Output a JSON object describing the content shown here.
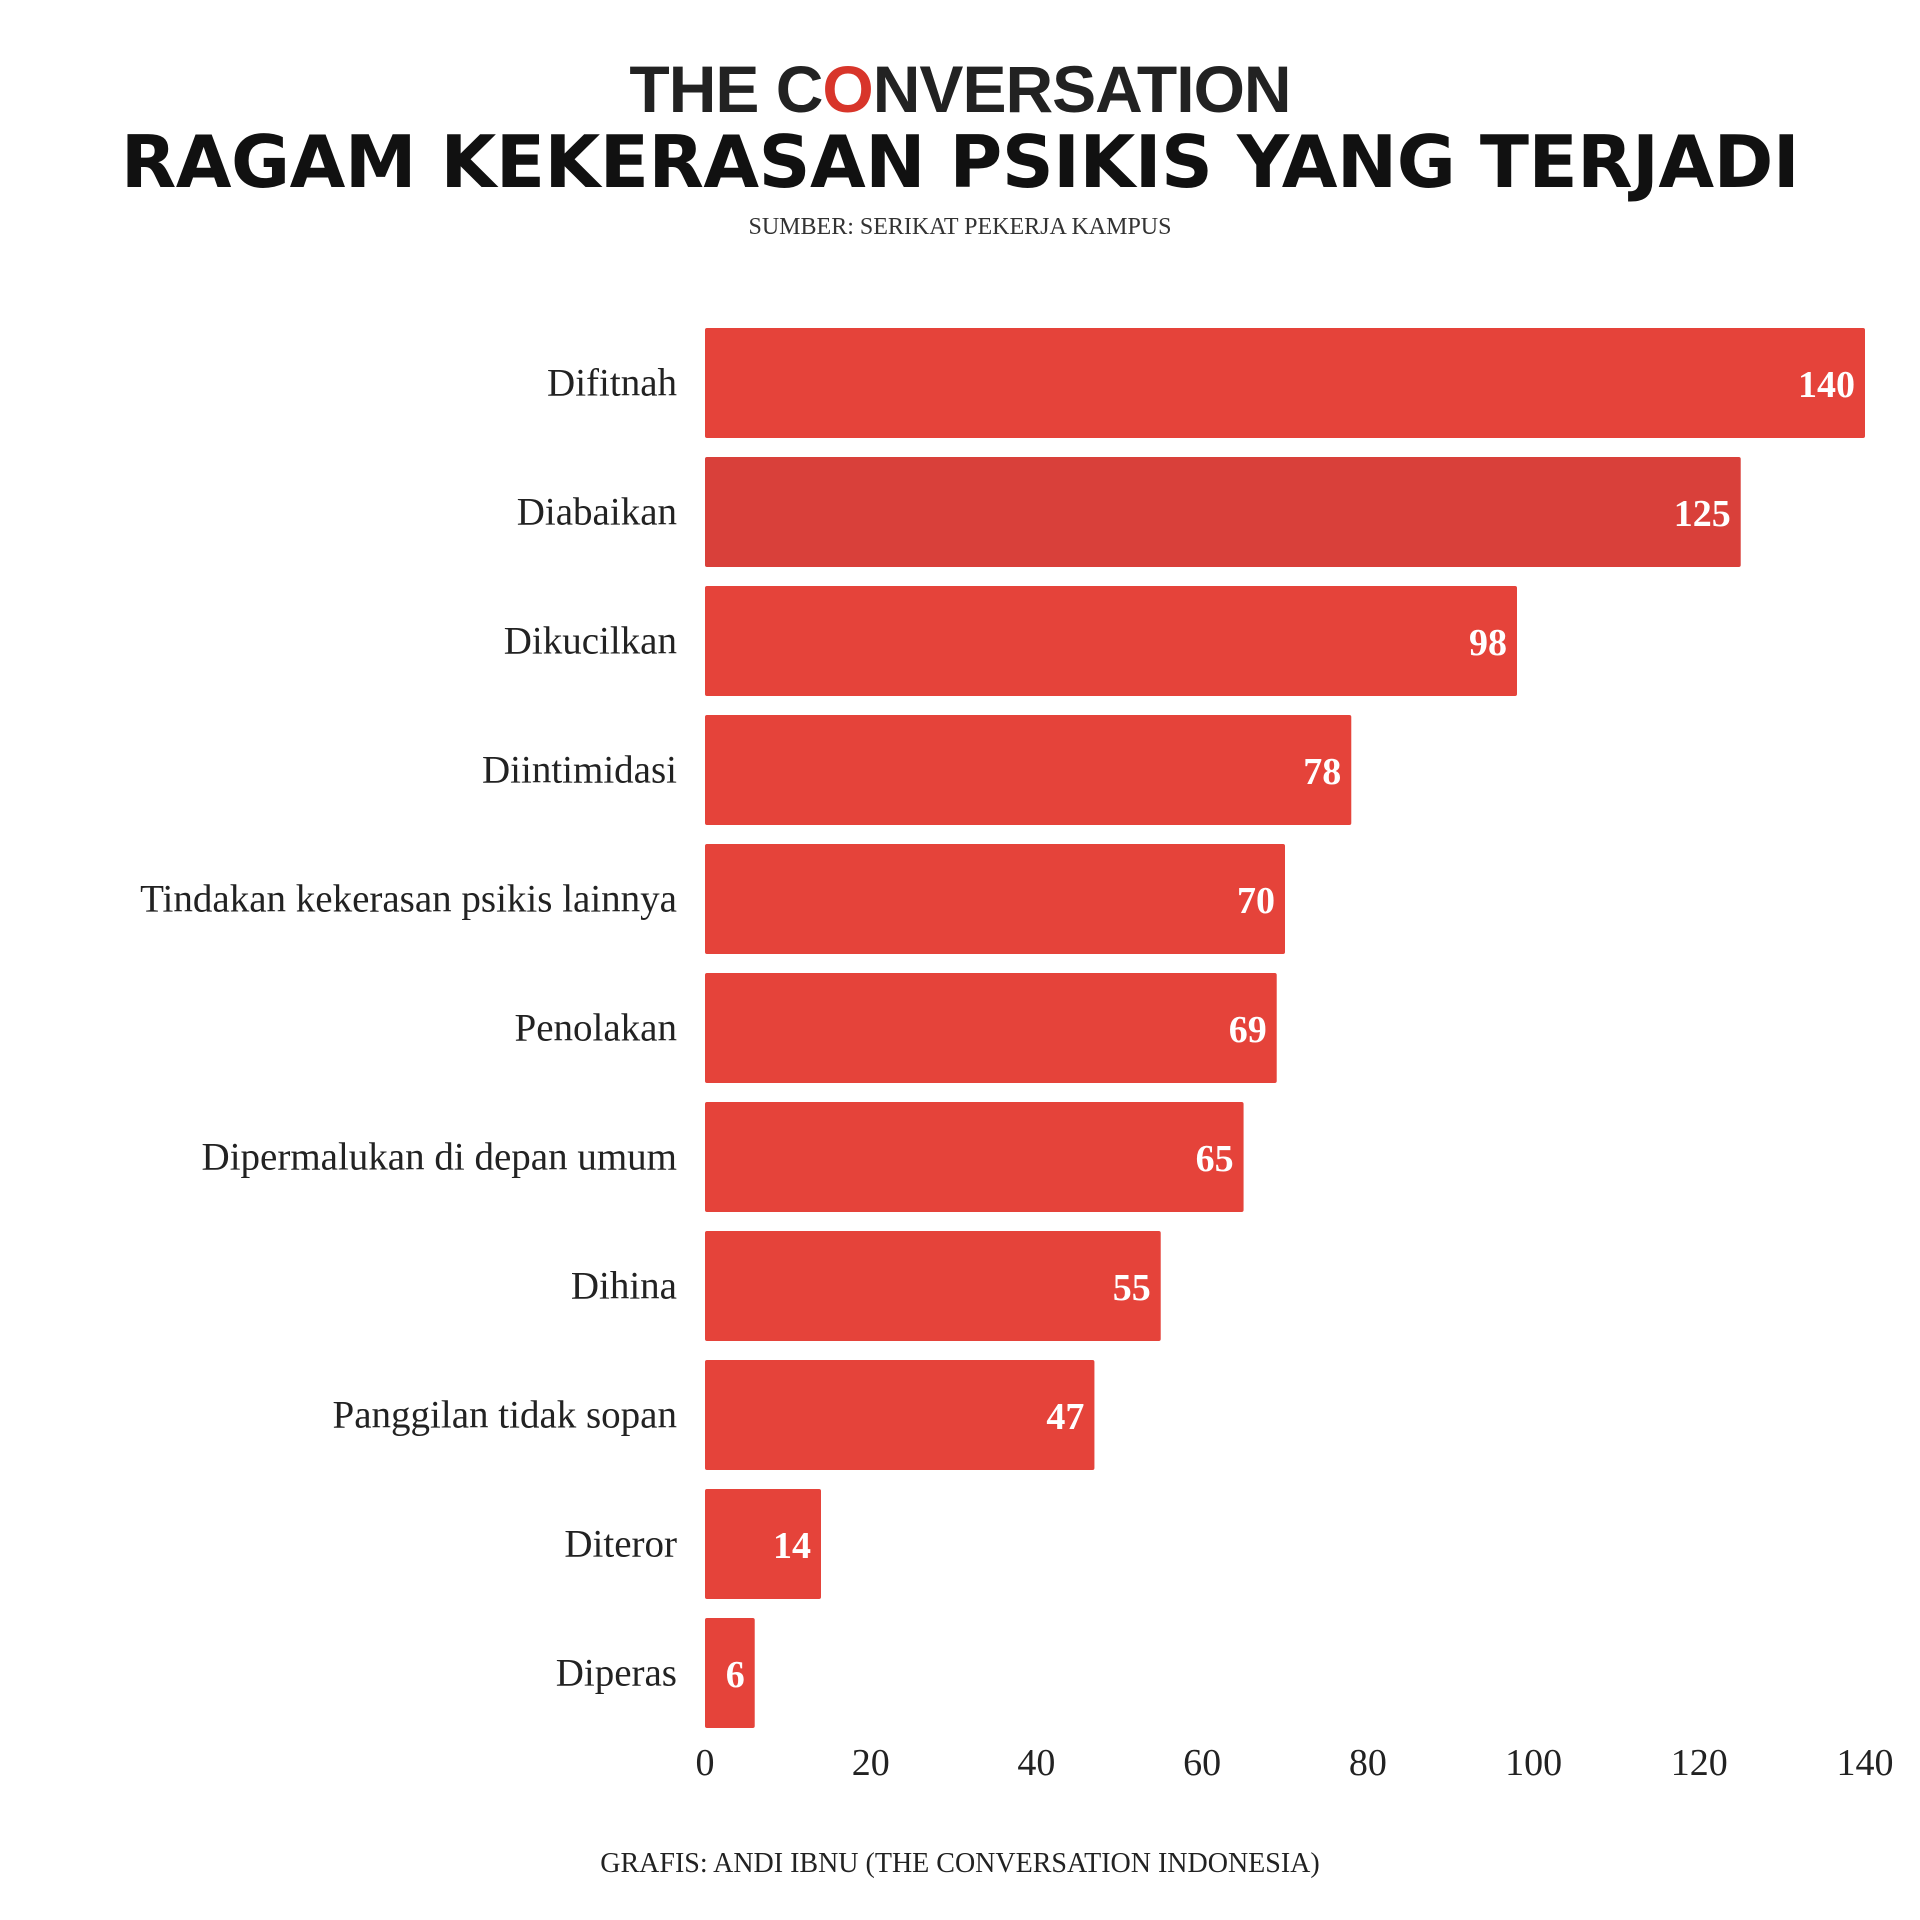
{
  "header": {
    "logo_prefix": "THE C",
    "logo_accent": "O",
    "logo_suffix": "NVERSATION",
    "title": "RAGAM KEKERASAN PSIKIS YANG TERJADI",
    "source": "SUMBER: SERIKAT PEKERJA KAMPUS"
  },
  "footer": {
    "credit": "GRAFIS: ANDI IBNU (THE CONVERSATION INDONESIA)"
  },
  "colors": {
    "bar": "#e5433a",
    "bar_alt": "#d9403a",
    "accent": "#d8352a"
  },
  "chart_data": {
    "type": "bar",
    "orientation": "horizontal",
    "categories": [
      "Difitnah",
      "Diabaikan",
      "Dikucilkan",
      "Diintimidasi",
      "Tindakan kekerasan psikis lainnya",
      "Penolakan",
      "Dipermalukan di depan umum",
      "Dihina",
      "Panggilan tidak sopan",
      "Diteror",
      "Diperas"
    ],
    "values": [
      140,
      125,
      98,
      78,
      70,
      69,
      65,
      55,
      47,
      14,
      6
    ],
    "xlim": [
      0,
      140
    ],
    "xticks": [
      0,
      20,
      40,
      60,
      80,
      100,
      120,
      140
    ],
    "grid": false,
    "data_labels": true
  }
}
